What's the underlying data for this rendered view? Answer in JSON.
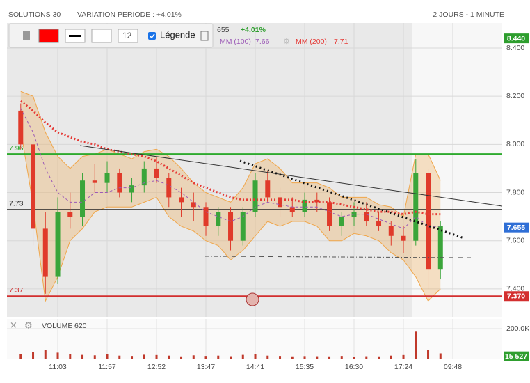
{
  "chart_data": {
    "type": "candlestick",
    "instrument": "SOLUTIONS 30",
    "variation": "VARIATION PERIODE : +4.01%",
    "period": "2 JOURS - 1 MINUTE",
    "legend_price": "655",
    "legend_change": "+4.01%",
    "toolbar": {
      "line_width": "12",
      "legend_label": "Légende"
    },
    "categories": [
      null,
      null,
      null,
      "11:03",
      null,
      null,
      null,
      "11:57",
      null,
      null,
      null,
      "12:52",
      null,
      null,
      null,
      "13:47",
      null,
      null,
      null,
      "14:41",
      null,
      null,
      null,
      "15:35",
      null,
      null,
      null,
      "16:30",
      null,
      null,
      null,
      "17:24",
      null,
      null,
      null,
      "09:48",
      null,
      null,
      null
    ],
    "open": [
      8.14,
      8.0,
      7.65,
      7.45,
      7.72,
      7.7,
      7.85,
      7.84,
      7.88,
      7.8,
      7.83,
      7.9,
      7.86,
      7.78,
      7.76,
      7.74,
      7.66,
      7.72,
      7.6,
      7.72,
      7.85,
      7.78,
      7.74,
      7.72,
      7.77,
      7.76,
      7.66,
      7.7,
      7.72,
      7.68,
      7.66,
      7.62,
      7.6,
      7.88,
      7.48,
      null,
      null,
      null,
      null
    ],
    "high": [
      8.17,
      8.02,
      7.72,
      7.78,
      7.8,
      7.88,
      7.92,
      7.93,
      7.9,
      7.86,
      7.93,
      7.95,
      7.88,
      7.82,
      7.8,
      7.76,
      7.74,
      7.74,
      7.74,
      7.88,
      7.89,
      7.82,
      7.78,
      7.8,
      7.8,
      7.78,
      7.72,
      7.76,
      7.76,
      7.72,
      7.68,
      7.66,
      7.94,
      7.9,
      7.68,
      null,
      null,
      null,
      null
    ],
    "low": [
      7.98,
      7.58,
      7.38,
      7.42,
      7.65,
      7.66,
      7.8,
      7.8,
      7.78,
      7.76,
      7.8,
      7.84,
      7.74,
      7.7,
      7.68,
      7.62,
      7.62,
      7.56,
      7.58,
      7.7,
      7.76,
      7.7,
      7.7,
      7.7,
      7.72,
      7.64,
      7.62,
      7.66,
      7.66,
      7.64,
      7.58,
      7.55,
      7.58,
      7.4,
      7.44,
      null,
      null,
      null,
      null
    ],
    "close": [
      8.0,
      7.65,
      7.45,
      7.72,
      7.7,
      7.85,
      7.84,
      7.88,
      7.8,
      7.83,
      7.9,
      7.86,
      7.78,
      7.76,
      7.74,
      7.66,
      7.72,
      7.6,
      7.72,
      7.85,
      7.78,
      7.74,
      7.72,
      7.77,
      7.76,
      7.66,
      7.7,
      7.72,
      7.68,
      7.66,
      7.62,
      7.6,
      7.88,
      7.48,
      7.66,
      null,
      null,
      null,
      null
    ],
    "up_color": "#3aa53a",
    "down_color": "#e03a2a",
    "series": [
      {
        "name": "MM (100)",
        "last": 7.66,
        "color": "#9b59b6",
        "values": [
          8.15,
          8.05,
          7.9,
          7.8,
          7.76,
          7.76,
          7.8,
          7.8,
          7.82,
          7.82,
          7.84,
          7.85,
          7.83,
          7.8,
          7.76,
          7.72,
          7.7,
          7.68,
          7.7,
          7.74,
          7.76,
          7.75,
          7.74,
          7.74,
          7.74,
          7.72,
          7.7,
          7.71,
          7.71,
          7.69,
          7.67,
          7.65,
          7.7,
          7.66,
          7.66,
          null,
          null,
          null,
          null
        ]
      },
      {
        "name": "MM (200)",
        "last": 7.71,
        "color": "#e53935",
        "values": [
          8.18,
          8.14,
          8.09,
          8.05,
          8.03,
          8.01,
          8.0,
          7.98,
          7.97,
          7.96,
          7.95,
          7.93,
          7.9,
          7.87,
          7.84,
          7.82,
          7.8,
          7.78,
          7.77,
          7.77,
          7.77,
          7.77,
          7.77,
          7.76,
          7.76,
          7.76,
          7.75,
          7.74,
          7.73,
          7.72,
          7.72,
          7.71,
          7.72,
          7.71,
          7.71,
          null,
          null,
          null,
          null
        ]
      }
    ],
    "band_color": "#f0a64a",
    "band_upper": [
      8.22,
      8.2,
      8.05,
      7.95,
      7.9,
      7.95,
      7.96,
      7.98,
      7.96,
      7.94,
      7.97,
      7.98,
      7.95,
      7.9,
      7.84,
      7.8,
      7.78,
      7.76,
      7.82,
      7.92,
      7.94,
      7.9,
      7.84,
      7.84,
      7.84,
      7.82,
      7.78,
      7.78,
      7.78,
      7.75,
      7.74,
      7.7,
      7.96,
      7.96,
      7.85,
      null,
      null,
      null,
      null
    ],
    "band_lower": [
      8.06,
      7.75,
      7.35,
      7.45,
      7.6,
      7.65,
      7.72,
      7.74,
      7.74,
      7.74,
      7.76,
      7.78,
      7.7,
      7.66,
      7.64,
      7.6,
      7.58,
      7.52,
      7.56,
      7.62,
      7.68,
      7.66,
      7.68,
      7.68,
      7.66,
      7.6,
      7.6,
      7.63,
      7.62,
      7.6,
      7.55,
      7.52,
      7.45,
      7.35,
      7.4,
      null,
      null,
      null,
      null
    ],
    "levels": [
      {
        "value": 7.96,
        "label": "7.96",
        "color": "#2eaa2e"
      },
      {
        "value": 7.73,
        "label": "7.73",
        "color": "#222222"
      },
      {
        "value": 7.37,
        "label": "7.37",
        "color": "#d32f2f"
      }
    ],
    "price_tags": [
      {
        "value": 8.44,
        "label": "8.440",
        "color": "#2e9e2e"
      },
      {
        "value": 7.655,
        "label": "7.655",
        "color": "#2f6fd6"
      },
      {
        "value": 7.37,
        "label": "7.370",
        "color": "#d32f2f"
      }
    ],
    "ylim": [
      7.284,
      8.504
    ],
    "yticks": [
      {
        "value": 7.4,
        "label": "7.400"
      },
      {
        "value": 7.6,
        "label": "7.600"
      },
      {
        "value": 7.8,
        "label": "7.800"
      },
      {
        "value": 8.0,
        "label": "8.000"
      },
      {
        "value": 8.2,
        "label": "8.200"
      },
      {
        "value": 8.4,
        "label": "8.400"
      }
    ],
    "grid": true,
    "volume": {
      "title": "VOLUME",
      "last_label": "620",
      "color": "#c0392b",
      "values": [
        30000,
        45000,
        60000,
        40000,
        28000,
        25000,
        22000,
        30000,
        20000,
        18000,
        26000,
        24000,
        20000,
        15000,
        22000,
        18000,
        20000,
        16000,
        25000,
        30000,
        20000,
        18000,
        15000,
        17000,
        16000,
        15000,
        18000,
        14000,
        16000,
        15000,
        20000,
        24000,
        180000,
        60000,
        35000,
        null,
        null,
        null,
        null
      ],
      "ylim": [
        0,
        265000
      ],
      "yticks": [
        {
          "value": 200000,
          "label": "200.0K"
        }
      ],
      "tag": {
        "value": 15527,
        "label": "15 527"
      }
    }
  }
}
